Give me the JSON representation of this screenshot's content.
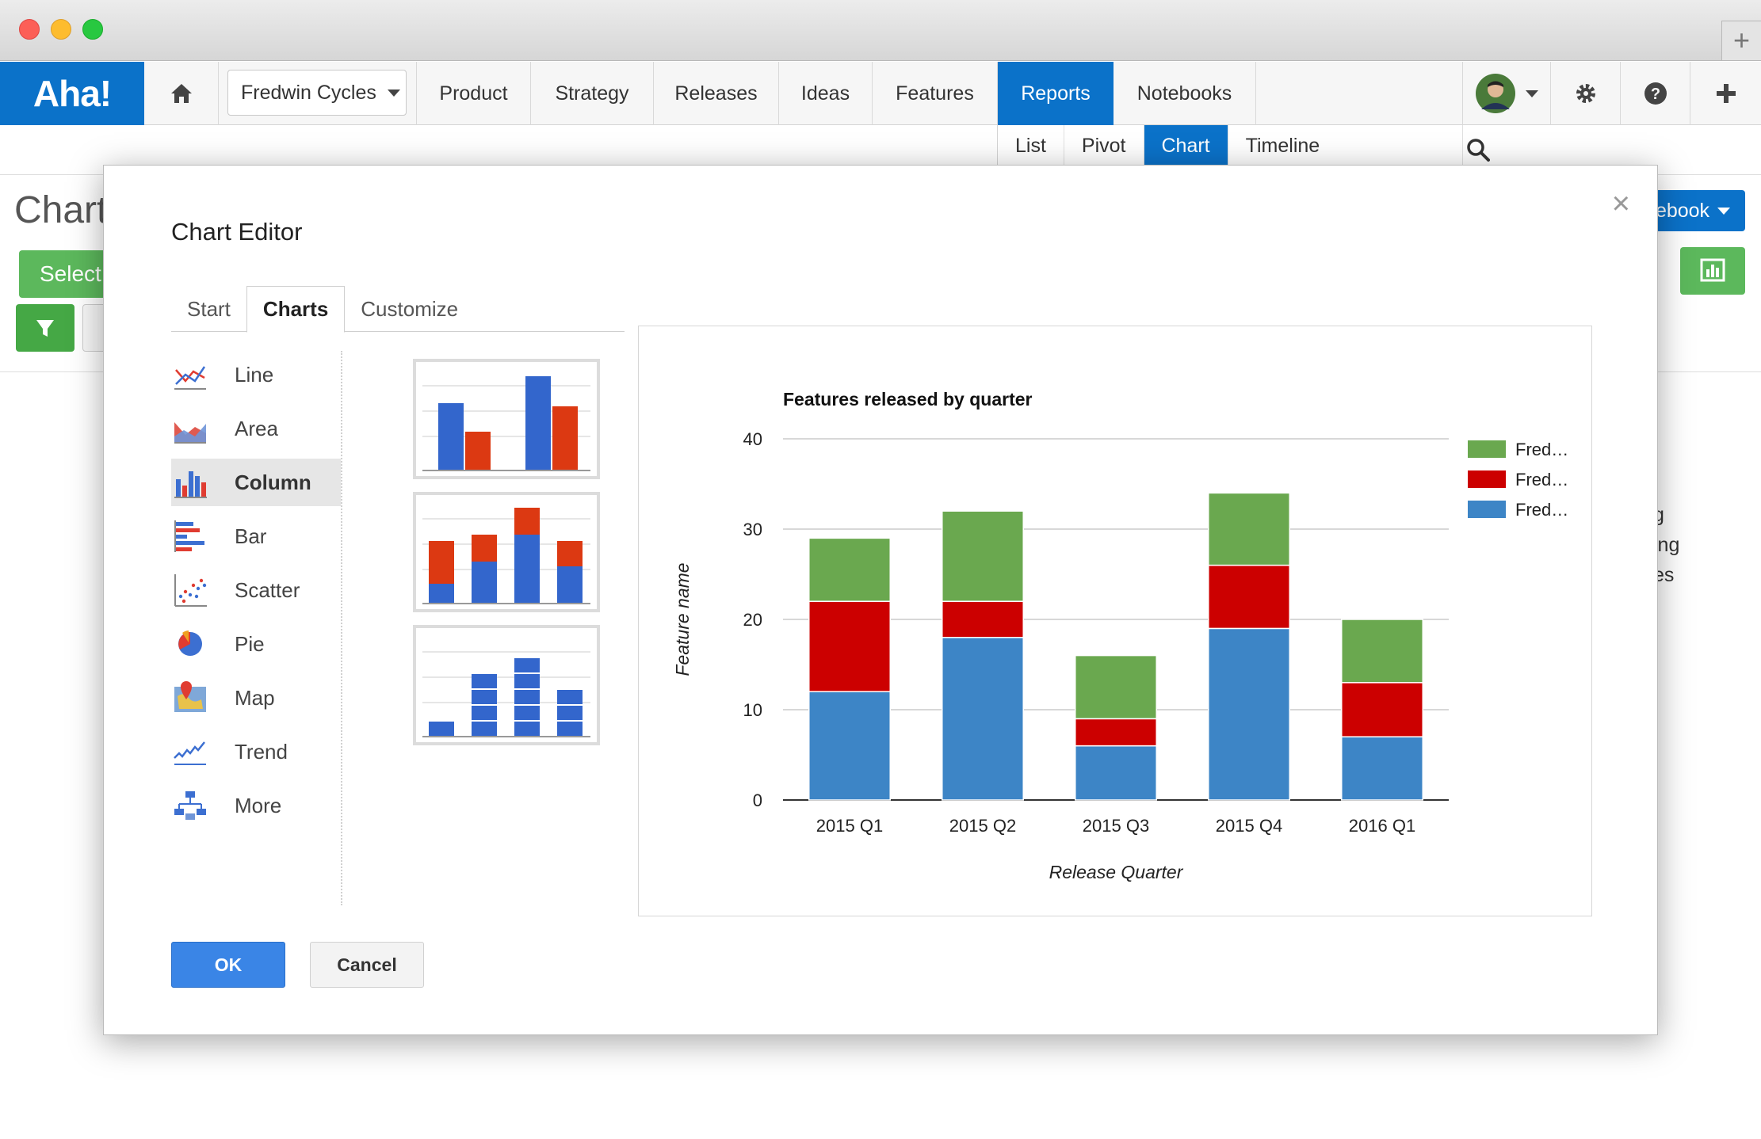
{
  "app": {
    "logo": "Aha!",
    "workspace": "Fredwin Cycles",
    "nav": [
      "Product",
      "Strategy",
      "Releases",
      "Ideas",
      "Features",
      "Reports",
      "Notebooks"
    ],
    "active_nav": "Reports",
    "subnav": [
      "List",
      "Pivot",
      "Chart",
      "Timeline"
    ],
    "active_subnav": "Chart",
    "icons": [
      "home-icon",
      "user-avatar",
      "gear-icon",
      "help-icon",
      "plus-icon",
      "search-icon"
    ]
  },
  "background": {
    "title": "Chart",
    "select_label": "Select",
    "notebook_label": "ebook",
    "side_texts": [
      "g",
      "ing",
      "es"
    ]
  },
  "modal": {
    "title": "Chart Editor",
    "close": "×",
    "tabs": [
      "Start",
      "Charts",
      "Customize"
    ],
    "active_tab": "Charts",
    "chart_types": [
      {
        "label": "Line",
        "icon": "line-chart-icon"
      },
      {
        "label": "Area",
        "icon": "area-chart-icon"
      },
      {
        "label": "Column",
        "icon": "column-chart-icon"
      },
      {
        "label": "Bar",
        "icon": "bar-chart-icon"
      },
      {
        "label": "Scatter",
        "icon": "scatter-chart-icon"
      },
      {
        "label": "Pie",
        "icon": "pie-chart-icon"
      },
      {
        "label": "Map",
        "icon": "map-icon"
      },
      {
        "label": "Trend",
        "icon": "trend-icon"
      },
      {
        "label": "More",
        "icon": "more-icon"
      }
    ],
    "selected_type": "Column",
    "ok_label": "OK",
    "cancel_label": "Cancel"
  },
  "chart_data": {
    "type": "bar",
    "stacked": true,
    "title": "Features released by quarter",
    "xlabel": "Release Quarter",
    "ylabel": "Feature name",
    "categories": [
      "2015 Q1",
      "2015 Q2",
      "2015 Q3",
      "2015 Q4",
      "2016 Q1"
    ],
    "ylim": [
      0,
      40
    ],
    "yticks": [
      0,
      10,
      20,
      30,
      40
    ],
    "grid": true,
    "legend": "right",
    "series": [
      {
        "name": "Fred…",
        "color": "#3d85c6",
        "values": [
          12,
          18,
          6,
          19,
          7
        ]
      },
      {
        "name": "Fred…",
        "color": "#cc0000",
        "values": [
          10,
          4,
          3,
          7,
          6
        ]
      },
      {
        "name": "Fred…",
        "color": "#6aa84f",
        "values": [
          7,
          10,
          7,
          8,
          7
        ]
      }
    ],
    "legend_order": [
      2,
      1,
      0
    ]
  }
}
